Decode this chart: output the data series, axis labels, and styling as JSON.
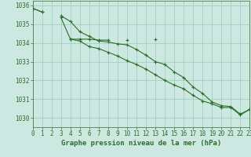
{
  "background_color": "#cce8e0",
  "grid_color": "#99ccbb",
  "line_color": "#2d6e2d",
  "marker": "+",
  "xlabel": "Graphe pression niveau de la mer (hPa)",
  "tick_color": "#2d6e2d",
  "hours": [
    0,
    1,
    2,
    3,
    4,
    5,
    6,
    7,
    8,
    9,
    10,
    11,
    12,
    13,
    14,
    15,
    16,
    17,
    18,
    19,
    20,
    21,
    22,
    23
  ],
  "line1": [
    1035.85,
    1035.65,
    null,
    null,
    1034.2,
    1034.2,
    1034.2,
    1034.15,
    1034.15,
    null,
    1034.15,
    null,
    null,
    1034.2,
    null,
    null,
    null,
    null,
    null,
    null,
    null,
    null,
    null,
    null
  ],
  "line2": [
    1035.85,
    null,
    null,
    1035.45,
    1035.15,
    1034.6,
    1034.35,
    1034.1,
    1034.05,
    1033.95,
    1033.9,
    1033.65,
    1033.35,
    1033.0,
    1032.85,
    1032.45,
    1032.15,
    1031.65,
    1031.3,
    1030.85,
    1030.65,
    1030.6,
    1030.2,
    1030.45
  ],
  "line3": [
    1035.85,
    1035.65,
    null,
    1035.35,
    1034.2,
    1034.1,
    1033.8,
    1033.7,
    1033.5,
    1033.3,
    1033.05,
    1032.85,
    1032.6,
    1032.3,
    1032.0,
    1031.75,
    1031.55,
    1031.2,
    1030.9,
    1030.75,
    1030.55,
    1030.55,
    1030.15,
    1030.45
  ],
  "ylim": [
    1029.5,
    1036.25
  ],
  "xlim": [
    0,
    23
  ],
  "yticks": [
    1030,
    1031,
    1032,
    1033,
    1034,
    1035,
    1036
  ],
  "xticks": [
    0,
    1,
    2,
    3,
    4,
    5,
    6,
    7,
    8,
    9,
    10,
    11,
    12,
    13,
    14,
    15,
    16,
    17,
    18,
    19,
    20,
    21,
    22,
    23
  ],
  "fontsize_ticks": 5.5,
  "fontsize_xlabel": 6.5,
  "lw": 0.8
}
